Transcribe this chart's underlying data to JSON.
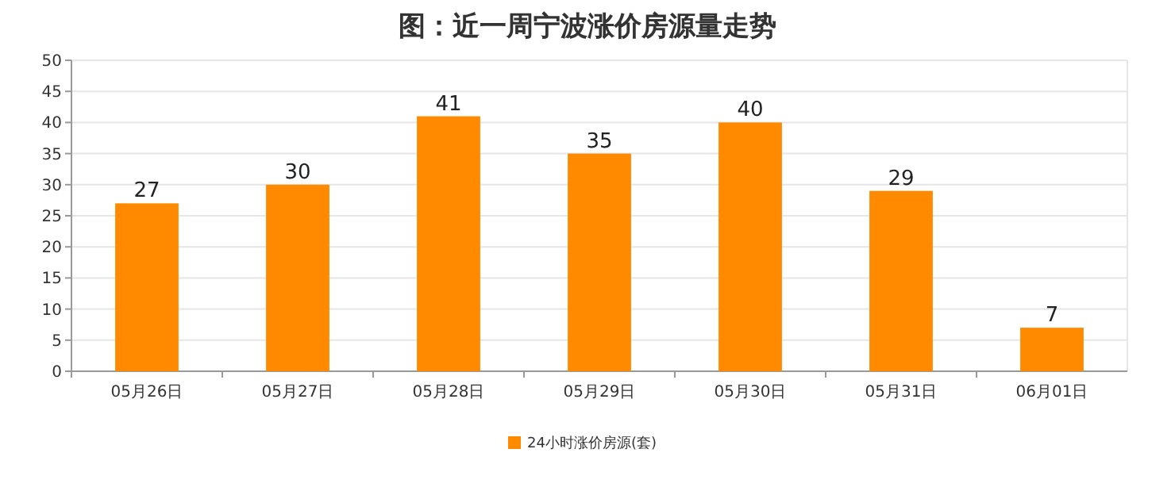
{
  "chart_data": {
    "type": "bar",
    "title": "图：近一周宁波涨价房源量走势",
    "categories": [
      "05月26日",
      "05月27日",
      "05月28日",
      "05月29日",
      "05月30日",
      "05月31日",
      "06月01日"
    ],
    "series": [
      {
        "name": "24小时涨价房源(套)",
        "color": "#ff8a00",
        "values": [
          27,
          30,
          41,
          35,
          40,
          29,
          7
        ]
      }
    ],
    "ylim": [
      0,
      50
    ],
    "yticks": [
      0,
      5,
      10,
      15,
      20,
      25,
      30,
      35,
      40,
      45,
      50
    ],
    "grid": "y",
    "legend": "bottom",
    "data_labels": true
  }
}
